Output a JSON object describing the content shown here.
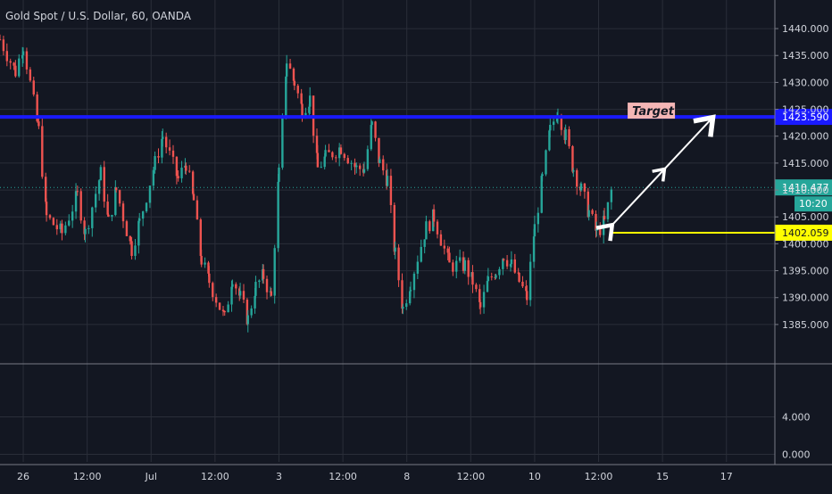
{
  "header": {
    "symbol_title": "Gold Spot / U.S. Dollar, 60, OANDA"
  },
  "colors": {
    "background": "#131722",
    "grid": "#2a2e39",
    "axis_text": "#d1d4dc",
    "up": "#26a69a",
    "down": "#ef5350",
    "target_line": "#1a1aff",
    "support_line": "#ffff00",
    "last_price_line": "#26a69a",
    "arrow": "#ffffff",
    "target_label_bg": "#f4b6b6"
  },
  "chart_data": {
    "type": "candlestick",
    "title": "Gold Spot / U.S. Dollar, 60, OANDA",
    "price_axis": {
      "range": [
        1382,
        1442
      ],
      "ticks": [
        "1440.000",
        "1435.000",
        "1430.000",
        "1425.000",
        "1420.000",
        "1415.000",
        "1410.000",
        "1405.000",
        "1400.000",
        "1395.000",
        "1390.000",
        "1385.000"
      ]
    },
    "indicator_axis": {
      "range": [
        -1,
        9
      ],
      "ticks": [
        "4.000",
        "0.000"
      ]
    },
    "time_axis": {
      "labels": [
        "26",
        "12:00",
        "Jul",
        "12:00",
        "3",
        "12:00",
        "8",
        "12:00",
        "10",
        "12:00",
        "15",
        "17"
      ],
      "range": [
        0,
        100
      ]
    },
    "candle_path": [
      [
        0,
        1438
      ],
      [
        2,
        1432
      ],
      [
        3,
        1437
      ],
      [
        5,
        1421
      ],
      [
        6,
        1405
      ],
      [
        8,
        1402
      ],
      [
        10,
        1409
      ],
      [
        11,
        1402
      ],
      [
        13,
        1413
      ],
      [
        14,
        1404
      ],
      [
        15,
        1410
      ],
      [
        17,
        1399
      ],
      [
        18,
        1404
      ],
      [
        20,
        1415
      ],
      [
        21,
        1420
      ],
      [
        23,
        1412
      ],
      [
        24,
        1415
      ],
      [
        25,
        1408
      ],
      [
        26,
        1397
      ],
      [
        27,
        1393
      ],
      [
        29,
        1386
      ],
      [
        30,
        1394
      ],
      [
        31,
        1390
      ],
      [
        32,
        1386
      ],
      [
        33,
        1392
      ],
      [
        34,
        1394
      ],
      [
        35,
        1390
      ],
      [
        36,
        1413
      ],
      [
        37,
        1434
      ],
      [
        38,
        1430
      ],
      [
        39,
        1425
      ],
      [
        40,
        1427
      ],
      [
        41,
        1414
      ],
      [
        42,
        1416
      ],
      [
        44,
        1418
      ],
      [
        46,
        1414
      ],
      [
        47,
        1414
      ],
      [
        48,
        1422
      ],
      [
        49,
        1415
      ],
      [
        50,
        1412
      ],
      [
        51,
        1398
      ],
      [
        52,
        1388
      ],
      [
        53,
        1393
      ],
      [
        55,
        1403
      ],
      [
        56,
        1405
      ],
      [
        58,
        1396
      ],
      [
        60,
        1396
      ],
      [
        61,
        1393
      ],
      [
        62,
        1388
      ],
      [
        63,
        1393
      ],
      [
        64,
        1395
      ],
      [
        65,
        1398
      ],
      [
        66,
        1396
      ],
      [
        67,
        1393
      ],
      [
        68,
        1390
      ],
      [
        69,
        1403
      ],
      [
        70,
        1412
      ],
      [
        71,
        1421
      ],
      [
        72,
        1425
      ],
      [
        73,
        1420
      ],
      [
        74,
        1414
      ],
      [
        75,
        1410
      ],
      [
        76,
        1406
      ],
      [
        77,
        1402
      ],
      [
        78,
        1404
      ],
      [
        79,
        1410.477
      ]
    ],
    "current_price": "1410.477",
    "countdown": "10:20",
    "levels": [
      {
        "name": "target",
        "price": 1423.59,
        "label": "1423.590",
        "note": "Target"
      },
      {
        "name": "support",
        "price": 1402.059,
        "label": "1402.059",
        "from_x": 79
      }
    ],
    "projection": {
      "from": [
        79,
        1403.5
      ],
      "to": [
        92,
        1423.5
      ]
    }
  }
}
